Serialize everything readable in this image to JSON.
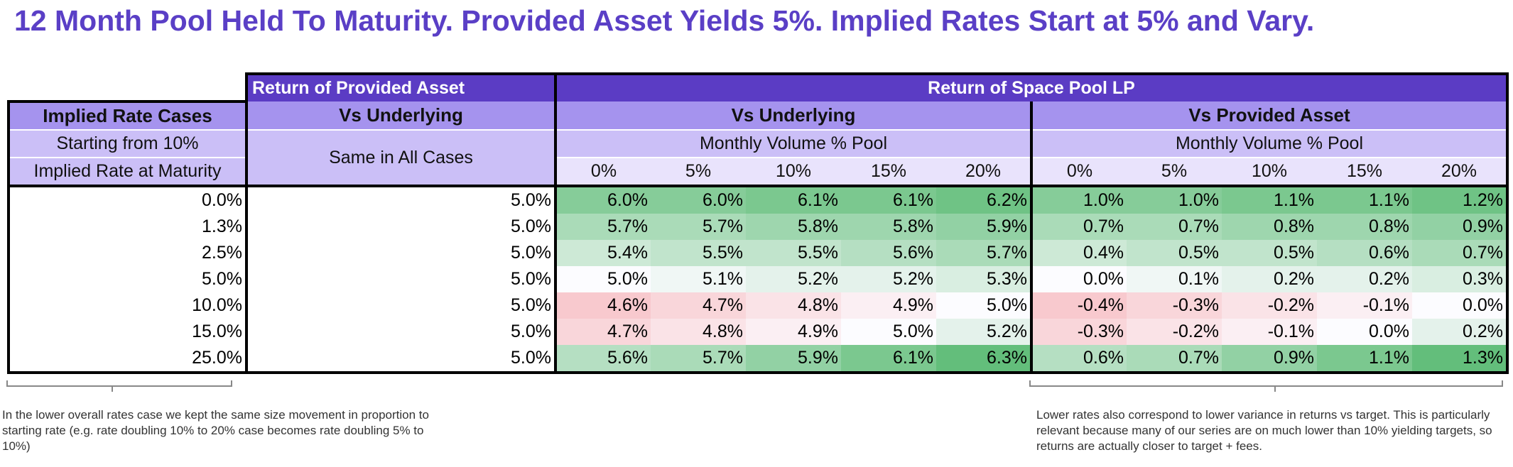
{
  "title": "12 Month Pool Held To Maturity.  Provided Asset Yields 5%.  Implied Rates Start at 5% and Vary.",
  "headers": {
    "return_provided": "Return of Provided Asset",
    "return_space": "Return of Space Pool LP",
    "implied_rate_cases": "Implied Rate Cases",
    "vs_underlying_left": "Vs Underlying",
    "vs_underlying": "Vs Underlying",
    "vs_provided": "Vs Provided Asset",
    "starting_from": "Starting from 10%",
    "same_in_all": "Same in All Cases",
    "monthly_volume_1": "Monthly Volume % Pool",
    "monthly_volume_2": "Monthly Volume % Pool",
    "implied_at_maturity": "Implied Rate at Maturity",
    "vol_cols": [
      "0%",
      "5%",
      "10%",
      "15%",
      "20%"
    ]
  },
  "rows": [
    {
      "rate": "0.0%",
      "provided": "5.0%",
      "vs_underlying": [
        "6.0%",
        "6.0%",
        "6.1%",
        "6.1%",
        "6.2%"
      ],
      "vs_provided": [
        "1.0%",
        "1.0%",
        "1.1%",
        "1.1%",
        "1.2%"
      ]
    },
    {
      "rate": "1.3%",
      "provided": "5.0%",
      "vs_underlying": [
        "5.7%",
        "5.7%",
        "5.8%",
        "5.8%",
        "5.9%"
      ],
      "vs_provided": [
        "0.7%",
        "0.7%",
        "0.8%",
        "0.8%",
        "0.9%"
      ]
    },
    {
      "rate": "2.5%",
      "provided": "5.0%",
      "vs_underlying": [
        "5.4%",
        "5.5%",
        "5.5%",
        "5.6%",
        "5.7%"
      ],
      "vs_provided": [
        "0.4%",
        "0.5%",
        "0.5%",
        "0.6%",
        "0.7%"
      ]
    },
    {
      "rate": "5.0%",
      "provided": "5.0%",
      "vs_underlying": [
        "5.0%",
        "5.1%",
        "5.2%",
        "5.2%",
        "5.3%"
      ],
      "vs_provided": [
        "0.0%",
        "0.1%",
        "0.2%",
        "0.2%",
        "0.3%"
      ]
    },
    {
      "rate": "10.0%",
      "provided": "5.0%",
      "vs_underlying": [
        "4.6%",
        "4.7%",
        "4.8%",
        "4.9%",
        "5.0%"
      ],
      "vs_provided": [
        "-0.4%",
        "-0.3%",
        "-0.2%",
        "-0.1%",
        "0.0%"
      ]
    },
    {
      "rate": "15.0%",
      "provided": "5.0%",
      "vs_underlying": [
        "4.7%",
        "4.8%",
        "4.9%",
        "5.0%",
        "5.2%"
      ],
      "vs_provided": [
        "-0.3%",
        "-0.2%",
        "-0.1%",
        "0.0%",
        "0.2%"
      ]
    },
    {
      "rate": "25.0%",
      "provided": "5.0%",
      "vs_underlying": [
        "5.6%",
        "5.7%",
        "5.9%",
        "6.1%",
        "6.3%"
      ],
      "vs_provided": [
        "0.6%",
        "0.7%",
        "0.9%",
        "1.1%",
        "1.3%"
      ]
    }
  ],
  "notes": {
    "left": "In the lower overall rates case we kept the same size movement in proportion to starting rate (e.g. rate doubling 10% to 20% case becomes rate doubling 5% to 10%)",
    "right": "Lower rates also correspond to lower variance in returns vs target.  This is particularly relevant because many of our series are on much lower than 10% yielding targets, so returns are actually closer to target + fees."
  },
  "colors": {
    "title": "#5a3fc6",
    "header_dark": "#5b3cc4",
    "header_mid": "#a593ee",
    "header_light": "#cbbff7",
    "green_strong": "#63be7b",
    "red_light": "#f8dadd"
  }
}
